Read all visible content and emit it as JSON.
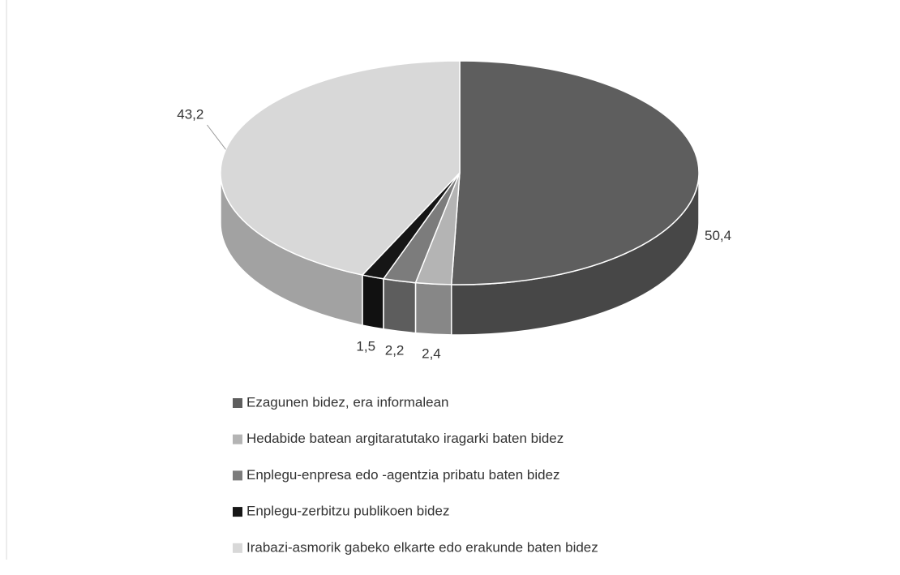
{
  "chart_data": {
    "type": "pie3d",
    "categories": [
      "Ezagunen bidez, era informalean",
      "Hedabide batean argitaratutako iragarki baten bidez",
      "Enplegu-enpresa edo -agentzia pribatu baten bidez",
      "Enplegu-zerbitzu publikoen bidez",
      "Irabazi-asmorik gabeko elkarte edo erakunde baten bidez"
    ],
    "values": [
      50.4,
      2.4,
      2.2,
      1.5,
      43.2
    ],
    "value_labels": [
      "50,4",
      "2,4",
      "2,2",
      "1,5",
      "43,2"
    ],
    "colors": [
      "#5e5e5e",
      "#b4b4b4",
      "#7c7c7c",
      "#161616",
      "#d8d8d8"
    ]
  }
}
